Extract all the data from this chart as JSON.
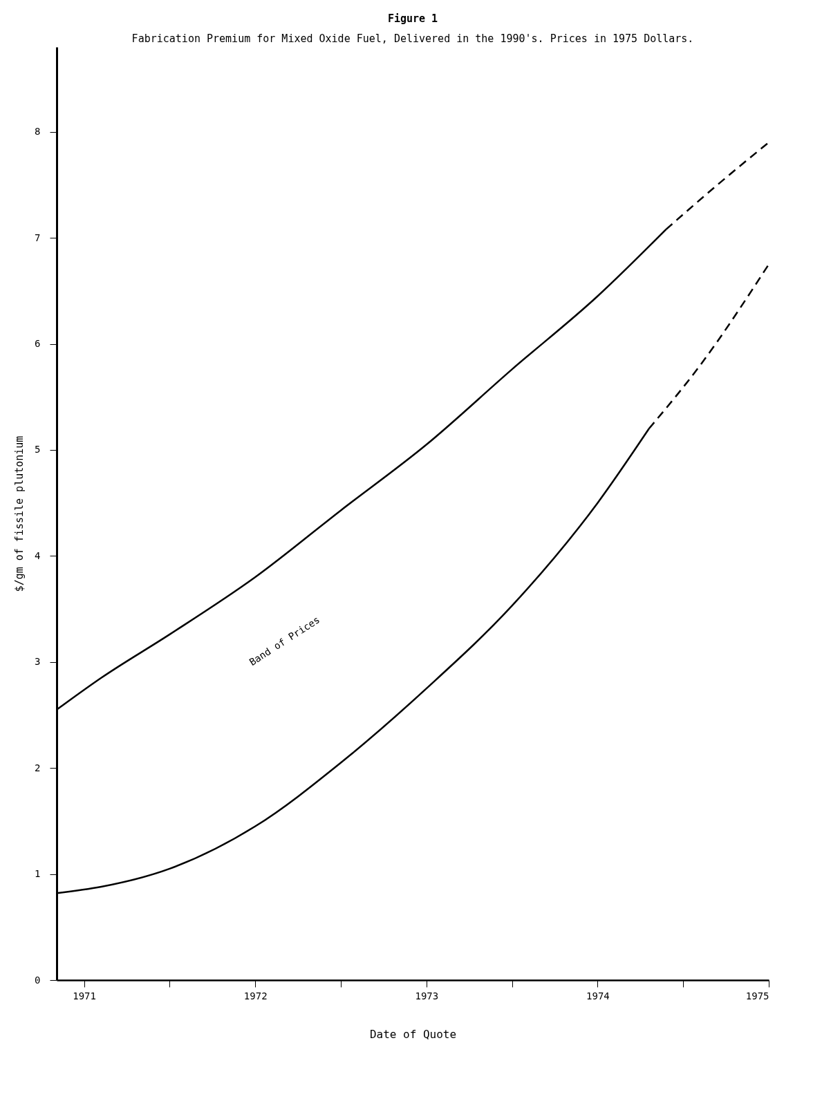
{
  "chart_data": {
    "type": "line",
    "title": "Figure 1",
    "subtitle": "Fabrication Premium for Mixed Oxide Fuel, Delivered in the 1990's.  Prices in 1975 Dollars.",
    "xlabel": "Date of Quote",
    "ylabel": "$/gm of fissile plutonium",
    "xlim": [
      1971.34,
      1975.5
    ],
    "xticks": [
      {
        "value": 1971.5,
        "label": "1971"
      },
      {
        "value": 1972,
        "label": null
      },
      {
        "value": 1972.5,
        "label": "1972"
      },
      {
        "value": 1973,
        "label": null
      },
      {
        "value": 1973.5,
        "label": "1973"
      },
      {
        "value": 1974,
        "label": null
      },
      {
        "value": 1974.5,
        "label": "1974"
      },
      {
        "value": 1975,
        "label": null
      },
      {
        "value": 1975.5,
        "label": "1975"
      }
    ],
    "ylim": [
      0,
      8.8
    ],
    "yticks": [
      0,
      1,
      2,
      3,
      4,
      5,
      6,
      7,
      8
    ],
    "grid": false,
    "series": [
      {
        "color": "#000000",
        "line_style": "solid",
        "x": [
          1971.34,
          1971.6,
          1972.0,
          1972.5,
          1973.0,
          1973.5,
          1974.0,
          1974.5,
          1974.9
        ],
        "values": [
          2.55,
          2.85,
          3.26,
          3.8,
          4.43,
          5.05,
          5.76,
          6.45,
          7.08
        ]
      },
      {
        "color": "#000000",
        "line_style": "dashed",
        "x": [
          1974.9,
          1975.2,
          1975.5
        ],
        "values": [
          7.08,
          7.5,
          7.9
        ]
      },
      {
        "color": "#000000",
        "line_style": "solid",
        "x": [
          1971.34,
          1971.6,
          1972.0,
          1972.5,
          1973.0,
          1973.5,
          1974.0,
          1974.5,
          1974.8
        ],
        "values": [
          0.82,
          0.88,
          1.05,
          1.45,
          2.05,
          2.75,
          3.53,
          4.5,
          5.2
        ]
      },
      {
        "color": "#000000",
        "line_style": "dashed",
        "x": [
          1974.8,
          1975.1,
          1975.5
        ],
        "values": [
          5.2,
          5.8,
          6.75
        ]
      }
    ],
    "annotations": [
      "Band of Prices"
    ]
  }
}
